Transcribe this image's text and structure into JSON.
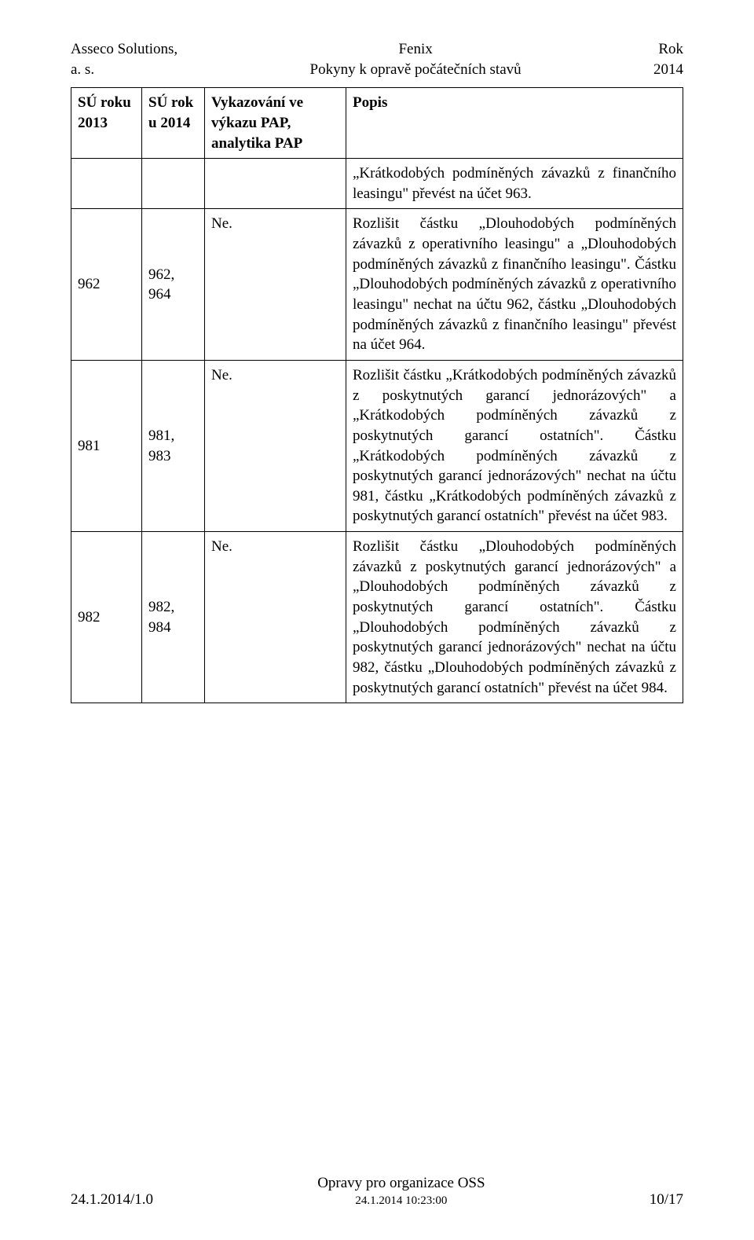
{
  "header": {
    "left_line1": "Asseco Solutions,",
    "left_line2": "a. s.",
    "center_line1": "Fenix",
    "center_line2": "Pokyny k opravě počátečních stavů",
    "right_line1": "Rok",
    "right_line2": "2014"
  },
  "table": {
    "columns": {
      "c0": "SÚ roku 2013",
      "c1": "SÚ rok u 2014",
      "c2": "Vykazování ve výkazu PAP, analytika PAP",
      "c3": "Popis"
    },
    "rows": [
      {
        "c0": "",
        "c1": "",
        "c2": "",
        "c3": "„Krátkodobých podmíněných závazků z finančního leasingu\" převést na účet 963."
      },
      {
        "c0": "962",
        "c1": "962, 964",
        "c2": "Ne.",
        "c3": "Rozlišit částku „Dlouhodobých podmíněných závazků z operativního leasingu\" a „Dlouhodobých podmíněných závazků z finančního leasingu\". Částku „Dlouhodobých podmíněných závazků z operativního leasingu\" nechat na účtu 962, částku „Dlouhodobých podmíněných závazků z finančního leasingu\" převést na účet 964."
      },
      {
        "c0": "981",
        "c1": "981, 983",
        "c2": "Ne.",
        "c3": "Rozlišit částku „Krátkodobých podmíněných závazků z poskytnutých garancí jednorázových\" a „Krátkodobých podmíněných závazků z poskytnutých garancí ostatních\". Částku „Krátkodobých podmíněných závazků z poskytnutých garancí jednorázových\" nechat na účtu 981, částku „Krátkodobých podmíněných závazků z poskytnutých garancí ostatních\" převést na účet 983."
      },
      {
        "c0": "982",
        "c1": "982, 984",
        "c2": "Ne.",
        "c3": "Rozlišit částku „Dlouhodobých podmíněných závazků z poskytnutých garancí jednorázových\" a „Dlouhodobých podmíněných závazků z poskytnutých garancí ostatních\". Částku „Dlouhodobých podmíněných závazků z poskytnutých garancí jednorázových\" nechat na účtu 982, částku „Dlouhodobých podmíněných závazků z poskytnutých garancí ostatních\" převést na účet 984."
      }
    ]
  },
  "footer": {
    "left": "24.1.2014/1.0",
    "center_line1": "Opravy pro organizace OSS",
    "center_line2": "24.1.2014 10:23:00",
    "right": "10/17"
  }
}
